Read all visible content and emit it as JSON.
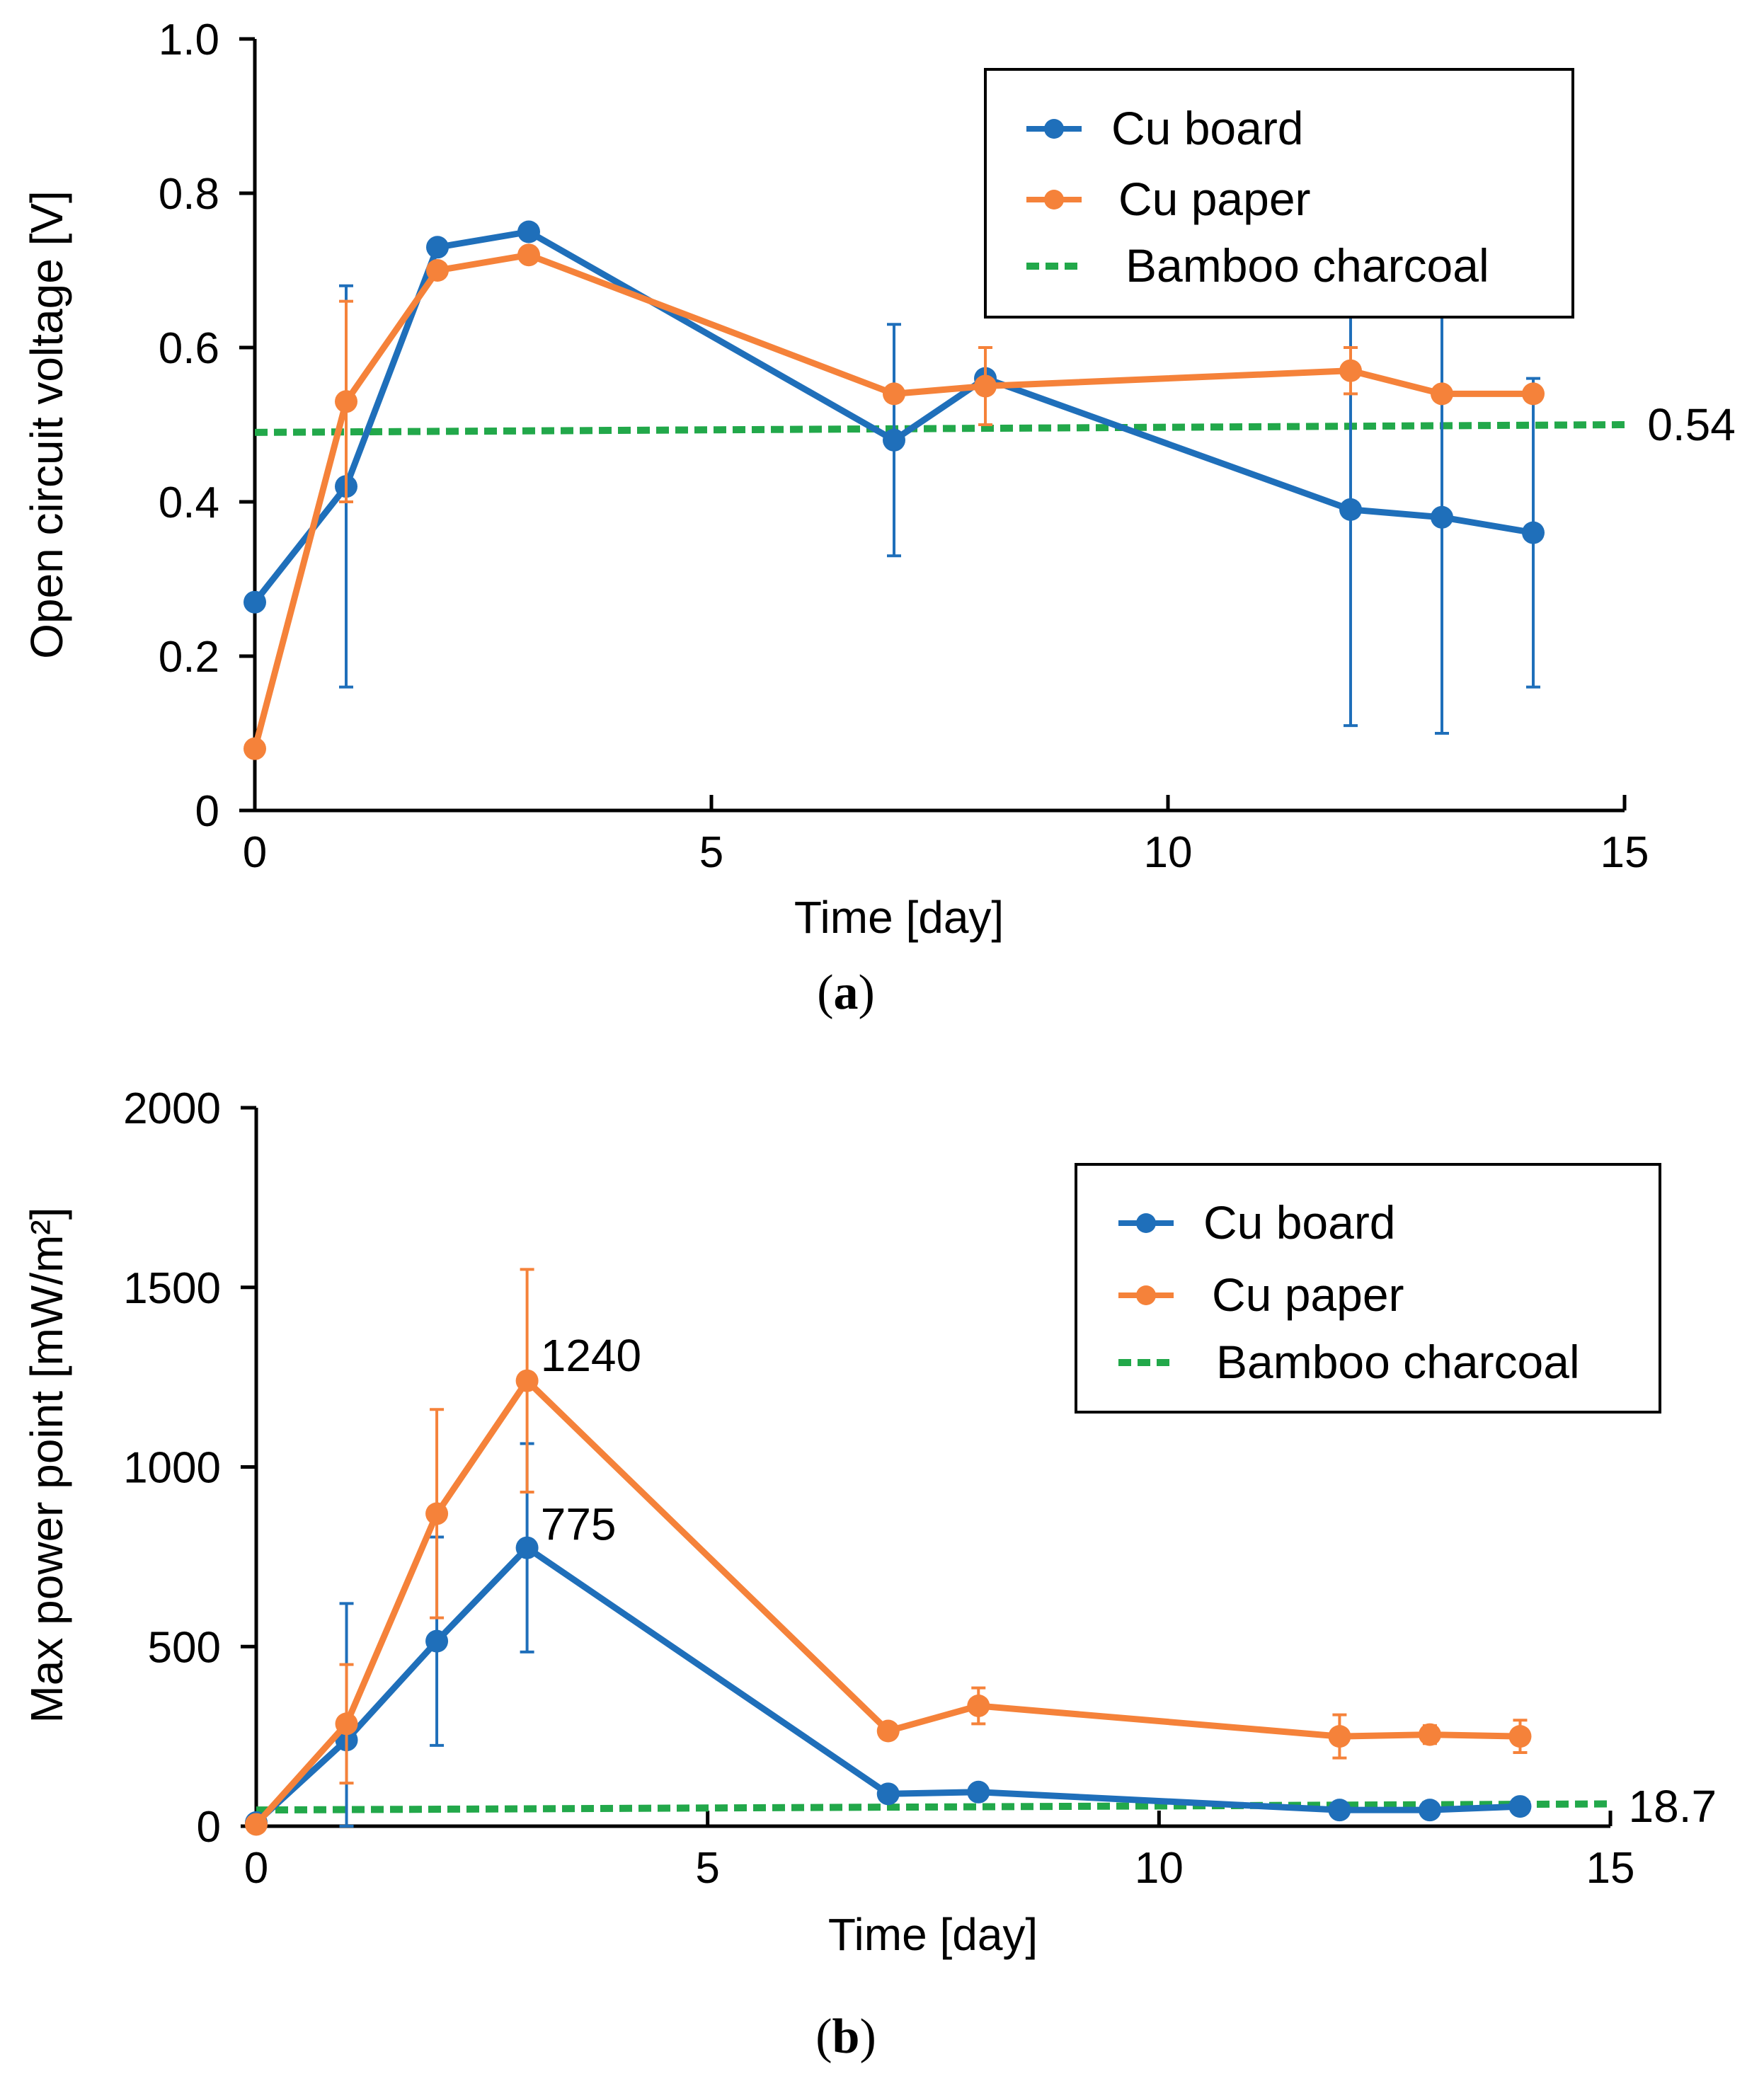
{
  "colors": {
    "cu_board": "#1f6fba",
    "cu_paper": "#f5823a",
    "bamboo": "#22a84a",
    "axis": "#000000"
  },
  "chart_data": [
    {
      "id": "a",
      "type": "line",
      "caption_label": "a",
      "xlabel": "Time [day]",
      "ylabel": "Open circuit voltage  [V]",
      "xlim": [
        0,
        15
      ],
      "ylim": [
        0,
        1.0
      ],
      "xticks": [
        0,
        5,
        10,
        15
      ],
      "xtick_labels": [
        "0",
        "5",
        "10",
        "15"
      ],
      "yticks": [
        0,
        0.2,
        0.4,
        0.6,
        0.8,
        1.0
      ],
      "ytick_labels": [
        "0",
        "0.2",
        "0.4",
        "0.6",
        "0.8",
        "1.0"
      ],
      "legend": {
        "placement": "top-right",
        "entries": [
          "Cu board",
          "Cu paper",
          "Bamboo charcoal"
        ]
      },
      "series": [
        {
          "name": "Cu board",
          "color_key": "cu_board",
          "x": [
            0,
            1,
            2,
            3,
            7,
            8,
            12,
            13,
            14
          ],
          "y": [
            0.27,
            0.42,
            0.73,
            0.75,
            0.48,
            0.56,
            0.39,
            0.38,
            0.36
          ],
          "err": [
            0.0,
            0.26,
            0.0,
            0.0,
            0.15,
            0.0,
            0.28,
            0.28,
            0.2
          ]
        },
        {
          "name": "Cu paper",
          "color_key": "cu_paper",
          "x": [
            0,
            1,
            2,
            3,
            7,
            8,
            12,
            13,
            14
          ],
          "y": [
            0.08,
            0.53,
            0.7,
            0.72,
            0.54,
            0.55,
            0.57,
            0.54,
            0.54
          ],
          "err": [
            0.0,
            0.13,
            0.0,
            0.0,
            0.0,
            0.05,
            0.03,
            0.0,
            0.0
          ]
        }
      ],
      "reference_line": {
        "name": "Bamboo charcoal",
        "color_key": "bamboo",
        "x": [
          0,
          15
        ],
        "y": [
          0.49,
          0.5
        ]
      },
      "annotations": [
        {
          "text": "0.54",
          "x": 15.25,
          "y": 0.5
        }
      ]
    },
    {
      "id": "b",
      "type": "line",
      "caption_label": "b",
      "xlabel": "Time [day]",
      "ylabel": "Max power point  [mW/m²]",
      "xlim": [
        0,
        15
      ],
      "ylim": [
        0,
        2000
      ],
      "xticks": [
        0,
        5,
        10,
        15
      ],
      "xtick_labels": [
        "0",
        "5",
        "10",
        "15"
      ],
      "yticks": [
        0,
        500,
        1000,
        1500,
        2000
      ],
      "ytick_labels": [
        "0",
        "500",
        "1000",
        "1500",
        "2000"
      ],
      "legend": {
        "placement": "top-right",
        "entries": [
          "Cu board",
          "Cu paper",
          "Bamboo charcoal"
        ]
      },
      "series": [
        {
          "name": "Cu board",
          "color_key": "cu_board",
          "x": [
            0,
            1,
            2,
            3,
            7,
            8,
            12,
            13,
            14
          ],
          "y": [
            10,
            240,
            515,
            775,
            90,
            95,
            45,
            45,
            55
          ],
          "err": [
            0,
            380,
            290,
            290,
            0,
            0,
            0,
            0,
            0
          ]
        },
        {
          "name": "Cu paper",
          "color_key": "cu_paper",
          "x": [
            0,
            1,
            2,
            3,
            7,
            8,
            12,
            13,
            14
          ],
          "y": [
            5,
            285,
            870,
            1240,
            265,
            335,
            250,
            255,
            250
          ],
          "err": [
            0,
            165,
            290,
            310,
            0,
            50,
            60,
            25,
            45
          ]
        }
      ],
      "reference_line": {
        "name": "Bamboo charcoal",
        "color_key": "bamboo",
        "x": [
          0,
          15
        ],
        "y": [
          45,
          62
        ]
      },
      "annotations": [
        {
          "text": "1240",
          "x": 3.15,
          "y": 1310
        },
        {
          "text": "775",
          "x": 3.15,
          "y": 840
        },
        {
          "text": "18.7",
          "x": 15.2,
          "y": 55
        }
      ]
    }
  ]
}
